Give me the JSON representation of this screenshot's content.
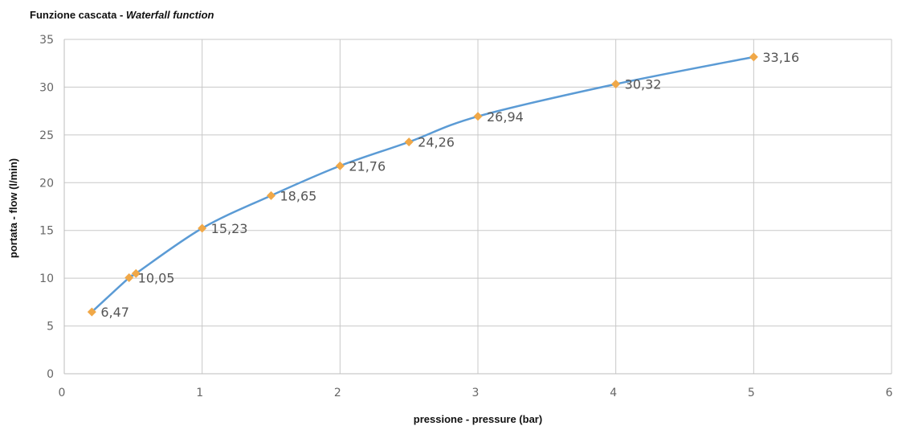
{
  "chart_data": {
    "type": "line",
    "title_main": "Funzione cascata - ",
    "title_italic": "Waterfall function",
    "xlabel": "pressione - pressure   (bar)",
    "ylabel": "portata - flow (l/min)",
    "xlim": [
      0,
      6
    ],
    "ylim": [
      0,
      35
    ],
    "x_ticks": [
      0,
      1,
      2,
      3,
      4,
      5,
      6
    ],
    "y_ticks": [
      0,
      5,
      10,
      15,
      20,
      25,
      30,
      35
    ],
    "grid": true,
    "line_color": "#5b9bd5",
    "marker_color": "#f0a848",
    "series": [
      {
        "points": [
          {
            "x": 0.2,
            "y": 6.47,
            "label": "6,47"
          },
          {
            "x": 0.47,
            "y": 10.05,
            "label": "10,05"
          },
          {
            "x": 0.52,
            "y": 10.5,
            "label": ""
          },
          {
            "x": 1.0,
            "y": 15.23,
            "label": "15,23"
          },
          {
            "x": 1.5,
            "y": 18.65,
            "label": "18,65"
          },
          {
            "x": 2.0,
            "y": 21.76,
            "label": "21,76"
          },
          {
            "x": 2.5,
            "y": 24.26,
            "label": "24,26"
          },
          {
            "x": 3.0,
            "y": 26.94,
            "label": "26,94"
          },
          {
            "x": 4.0,
            "y": 30.32,
            "label": "30,32"
          },
          {
            "x": 5.0,
            "y": 33.16,
            "label": "33,16"
          }
        ]
      }
    ]
  }
}
